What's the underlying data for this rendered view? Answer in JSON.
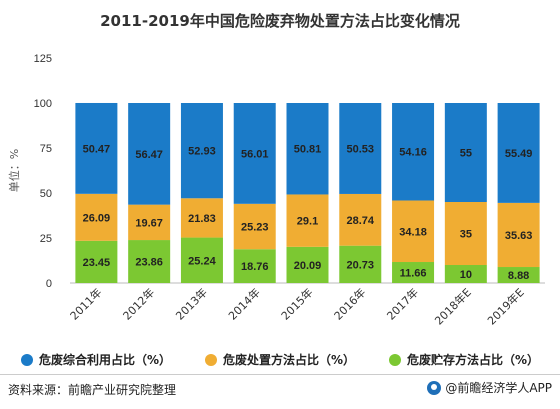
{
  "title": "2011-2019年中国危险废弃物处置方法占比变化情况",
  "source": "资料来源：前瞻产业研究院整理",
  "brand": "@前瞻经济学人APP",
  "chart_data": {
    "type": "bar",
    "stacked": true,
    "title": "2011-2019年中国危险废弃物处置方法占比变化情况",
    "ylabel": "单位：%",
    "ylim": [
      0,
      125
    ],
    "yticks": [
      0,
      25,
      50,
      75,
      100,
      125
    ],
    "grid": false,
    "legend": "bottom",
    "categories": [
      "2011年",
      "2012年",
      "2013年",
      "2014年",
      "2015年",
      "2016年",
      "2017年",
      "2018年E",
      "2019年E"
    ],
    "series": [
      {
        "name": "危废贮存方法占比（%）",
        "color": "#7cc832",
        "labels": [
          "23.45",
          "23.86",
          "25.24",
          "18.76",
          "20.09",
          "20.73",
          "11.66",
          "10",
          "8.88"
        ],
        "values": [
          23.45,
          23.86,
          25.24,
          18.76,
          20.09,
          20.73,
          11.66,
          10,
          8.88
        ]
      },
      {
        "name": "危废处置方法占比（%）",
        "color": "#f0ad33",
        "labels": [
          "26.09",
          "19.67",
          "21.83",
          "25.23",
          "29.1",
          "28.74",
          "34.18",
          "35",
          "35.63"
        ],
        "values": [
          26.09,
          19.67,
          21.83,
          25.23,
          29.1,
          28.74,
          34.18,
          35,
          35.63
        ]
      },
      {
        "name": "危废综合利用占比（%）",
        "color": "#1b7bc8",
        "labels": [
          "50.47",
          "56.47",
          "52.93",
          "56.01",
          "50.81",
          "50.53",
          "54.16",
          "55",
          "55.49"
        ],
        "values": [
          50.47,
          56.47,
          52.93,
          56.01,
          50.81,
          50.53,
          54.16,
          55,
          55.49
        ]
      }
    ],
    "legend_order": [
      2,
      1,
      0
    ]
  }
}
